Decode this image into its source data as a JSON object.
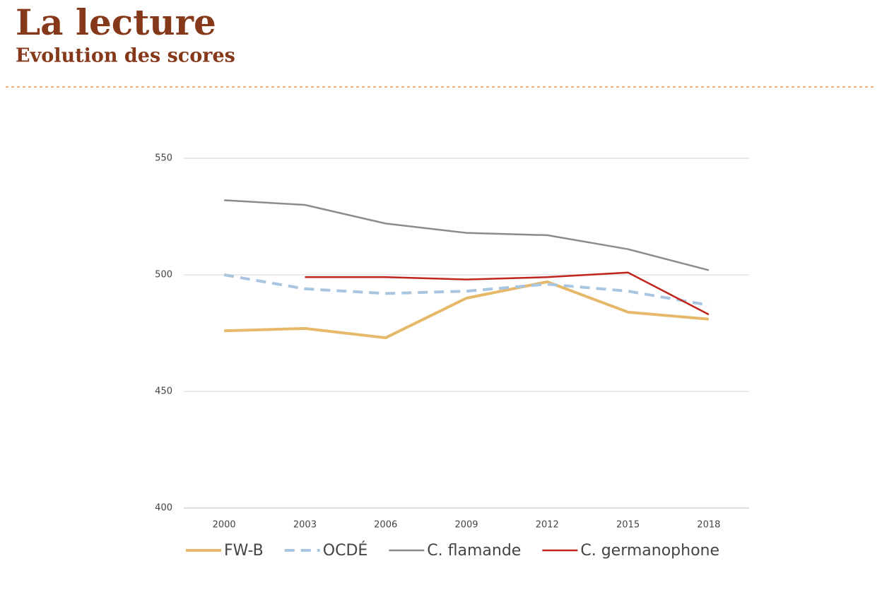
{
  "chart_data": {
    "type": "line",
    "title": "La lecture",
    "subtitle": "Evolution des scores",
    "categories": [
      "2000",
      "2003",
      "2006",
      "2009",
      "2012",
      "2015",
      "2018"
    ],
    "series": [
      {
        "name": "FW-B",
        "color": "#e6b96a",
        "dashed": false,
        "values": [
          476,
          477,
          473,
          490,
          497,
          484,
          481
        ]
      },
      {
        "name": "OCDÉ",
        "color": "#a9c6e0",
        "dashed": true,
        "values": [
          500,
          494,
          492,
          493,
          496,
          493,
          487
        ]
      },
      {
        "name": "C. flamande",
        "color": "#8c8c8c",
        "dashed": false,
        "values": [
          532,
          530,
          522,
          518,
          517,
          511,
          502
        ]
      },
      {
        "name": "C. germanophone",
        "color": "#c0241b",
        "dashed": false,
        "values": [
          null,
          499,
          499,
          498,
          499,
          501,
          483
        ]
      }
    ],
    "ylim": [
      400,
      550
    ],
    "yticks": [
      400,
      450,
      500,
      550
    ],
    "grid": true,
    "legend": "bottom"
  }
}
